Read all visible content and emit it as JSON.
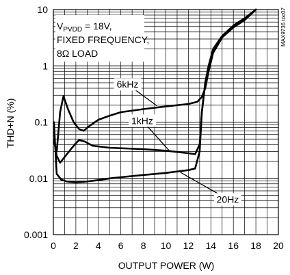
{
  "chart_data": {
    "type": "line",
    "title": "",
    "xlabel": "OUTPUT POWER (W)",
    "ylabel": "THD+N (%)",
    "xlim": [
      0,
      20
    ],
    "ylim": [
      0.001,
      10
    ],
    "y_scale": "log",
    "x_ticks": [
      "0",
      "2",
      "4",
      "6",
      "8",
      "10",
      "12",
      "14",
      "16",
      "18",
      "20"
    ],
    "y_ticks": [
      "0.001",
      "0.01",
      "0.1",
      "1",
      "10"
    ],
    "grid": true,
    "annotation": {
      "line1_main": "V",
      "line1_sub": "PVDD",
      "line1_rest": " = 18V,",
      "line2": "FIXED FREQUENCY,",
      "line3": "8Ω LOAD"
    },
    "part_number": "MAX9736 toc07",
    "series": [
      {
        "name": "6kHz",
        "x": [
          0.05,
          0.3,
          0.6,
          0.9,
          1.3,
          1.8,
          2.3,
          2.7,
          3.2,
          4,
          5,
          6,
          8,
          10,
          12,
          12.8,
          13.2,
          13.5,
          13.8,
          14.2,
          15,
          16,
          17,
          18
        ],
        "y": [
          0.045,
          0.03,
          0.15,
          0.29,
          0.17,
          0.1,
          0.075,
          0.07,
          0.085,
          0.11,
          0.13,
          0.15,
          0.17,
          0.19,
          0.21,
          0.23,
          0.28,
          0.4,
          0.8,
          1.7,
          3.2,
          4.8,
          6.5,
          10
        ]
      },
      {
        "name": "1kHz",
        "x": [
          0.05,
          0.3,
          0.6,
          1,
          1.5,
          2,
          2.3,
          2.8,
          3.5,
          5,
          8,
          10,
          12,
          12.6,
          13,
          13.2,
          13.5,
          13.8,
          14.2,
          15,
          16,
          17,
          18
        ],
        "y": [
          0.05,
          0.025,
          0.019,
          0.024,
          0.032,
          0.042,
          0.048,
          0.045,
          0.038,
          0.035,
          0.033,
          0.031,
          0.028,
          0.027,
          0.04,
          0.15,
          0.5,
          1.0,
          1.9,
          3.3,
          5.0,
          6.8,
          10
        ]
      },
      {
        "name": "20Hz",
        "x": [
          0.05,
          0.3,
          0.7,
          1.2,
          2,
          3,
          4,
          5,
          6,
          8,
          10,
          12,
          12.6,
          13,
          13.2,
          13.5,
          13.8,
          14.2,
          15,
          16,
          17,
          18
        ],
        "y": [
          0.1,
          0.012,
          0.0095,
          0.0088,
          0.0085,
          0.0088,
          0.0093,
          0.01,
          0.0105,
          0.0115,
          0.0125,
          0.014,
          0.015,
          0.03,
          0.15,
          0.5,
          1.0,
          2.0,
          3.4,
          5.2,
          7.0,
          10
        ]
      }
    ]
  }
}
